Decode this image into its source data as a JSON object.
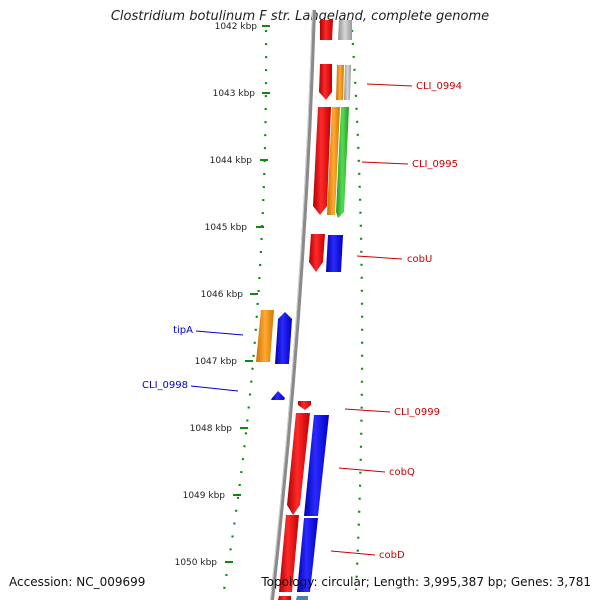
{
  "title": "Clostridium botulinum F str. Langeland, complete genome",
  "footer": {
    "accession": "Accession: NC_009699",
    "summary": "Topology: circular; Length: 3,995,387 bp; Genes: 3,781"
  },
  "colors": {
    "forward_red": "#ff0000",
    "reverse_blue": "#0000ff",
    "orange": "#ff9900",
    "green": "#33cc33",
    "gray": "#b0b0b0",
    "backbone": "#8a8a8a",
    "tick_green": "#118811",
    "label_red": "#cc0000",
    "label_blue": "#0000cc"
  },
  "scale": {
    "ticks": [
      {
        "label": "1042 kbp"
      },
      {
        "label": "1043 kbp"
      },
      {
        "label": "1044 kbp"
      },
      {
        "label": "1045 kbp"
      },
      {
        "label": "1046 kbp"
      },
      {
        "label": "1047 kbp"
      },
      {
        "label": "1048 kbp"
      },
      {
        "label": "1049 kbp"
      },
      {
        "label": "1050 kbp"
      }
    ]
  },
  "gene_labels": [
    {
      "text": "CLI_0994",
      "strand": "forward"
    },
    {
      "text": "CLI_0995",
      "strand": "forward"
    },
    {
      "text": "cobU",
      "strand": "forward"
    },
    {
      "text": "CLI_0999",
      "strand": "forward"
    },
    {
      "text": "cobQ",
      "strand": "forward"
    },
    {
      "text": "cobD",
      "strand": "forward"
    },
    {
      "text": "tipA",
      "strand": "reverse"
    },
    {
      "text": "CLI_0998",
      "strand": "reverse"
    }
  ]
}
